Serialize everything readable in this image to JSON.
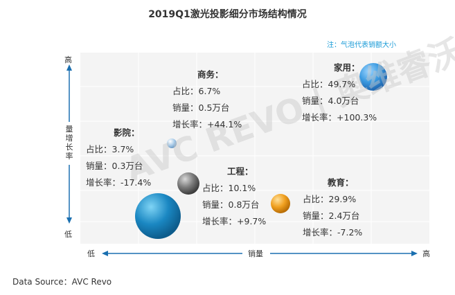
{
  "chart_data": {
    "type": "bubble",
    "title": "2019Q1激光投影细分市场结构情况",
    "note": "注：气泡代表销额大小",
    "xlabel": "销量",
    "ylabel": "量增长率",
    "x_low": "低",
    "x_high": "高",
    "y_low": "低",
    "y_high": "高",
    "field_labels": {
      "share": "占比：",
      "volume": "销量：",
      "growth": "增长率："
    },
    "series": [
      {
        "name": "家用：",
        "share": "49.7%",
        "volume": "4.0万台",
        "growth": "+100.3%",
        "color": "#3b9ae0"
      },
      {
        "name": "商务：",
        "share": "6.7%",
        "volume": "0.5万台",
        "growth": "+44.1%",
        "color": "#1a87c2"
      },
      {
        "name": "影院：",
        "share": "3.7%",
        "volume": "0.3万台",
        "growth": "-17.4%",
        "color": "#a9cbe8"
      },
      {
        "name": "工程：",
        "share": "10.1%",
        "volume": "0.8万台",
        "growth": "+9.7%",
        "color": "#7a7a7a"
      },
      {
        "name": "教育：",
        "share": "29.9%",
        "volume": "2.4万台",
        "growth": "-7.2%",
        "color": "#f0a020"
      }
    ],
    "source": "Data Source：AVC Revo",
    "watermark": "AVC REVO | 奥维睿沃"
  }
}
